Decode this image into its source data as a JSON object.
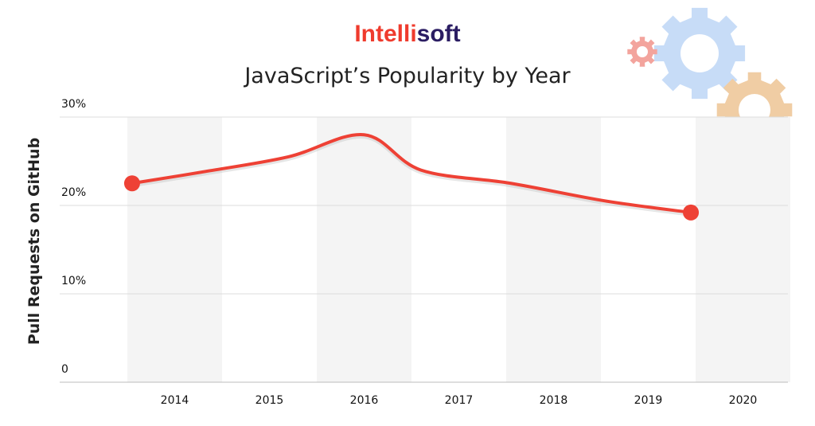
{
  "brand": {
    "text": "Intellisoft",
    "prefix": "Intelli",
    "suffix": "soft",
    "prefix_color": "#ef3b2d",
    "suffix_color": "#2b1d63"
  },
  "colors": {
    "line": "#ee4135",
    "band": "#f4f4f4",
    "grid": "#dddddd",
    "gear_blue": "#c7dcf7",
    "gear_orange": "#f0cda4",
    "gear_pink": "#f3a49d"
  },
  "icons": [
    "gear-icon-small",
    "gear-icon-large",
    "gear-icon-medium"
  ],
  "chart_data": {
    "type": "line",
    "title": "JavaScript’s Popularity by Year",
    "xlabel": "",
    "ylabel": "Pull Requests on GitHub",
    "categories": [
      "2014",
      "2015",
      "2016",
      "2017",
      "2018",
      "2019",
      "2020"
    ],
    "x": [
      2013.55,
      2014.3,
      2015.2,
      2016.0,
      2016.6,
      2017.55,
      2018.55,
      2019.45
    ],
    "y": [
      22.5,
      23.8,
      25.5,
      28.0,
      24.0,
      22.5,
      20.5,
      19.2
    ],
    "series": [
      {
        "values": [
          22.5,
          23.8,
          25.5,
          28.0,
          24.0,
          22.5,
          20.5,
          19.2
        ]
      }
    ],
    "markers": [
      {
        "x": 2013.55,
        "y": 22.5
      },
      {
        "x": 2019.45,
        "y": 19.2
      }
    ],
    "yticks": [
      "0",
      "10%",
      "20%",
      "30%"
    ],
    "ytick_values": [
      0,
      10,
      20,
      30
    ],
    "ylim": [
      0,
      30
    ],
    "xlim": [
      2013.5,
      2020.5
    ],
    "grid": true,
    "smooth": true
  }
}
